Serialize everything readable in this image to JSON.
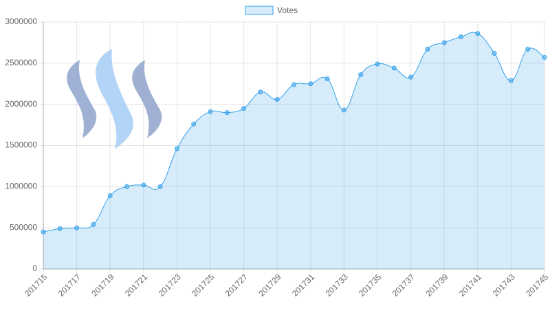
{
  "chart_data": {
    "type": "line",
    "categories": [
      "201715",
      null,
      "201717",
      null,
      "201719",
      null,
      "201721",
      null,
      "201723",
      null,
      "201725",
      null,
      "201727",
      null,
      "201729",
      null,
      "201731",
      null,
      "201733",
      null,
      "201735",
      null,
      "201737",
      null,
      "201739",
      null,
      "201741",
      null,
      "201743",
      null,
      "201745"
    ],
    "series": [
      {
        "name": "Votes",
        "color": "#36a2eb",
        "values": [
          450000,
          490000,
          500000,
          540000,
          890000,
          1000000,
          1020000,
          1000000,
          1460000,
          1760000,
          1910000,
          1900000,
          1950000,
          2150000,
          2060000,
          2240000,
          2250000,
          2310000,
          1930000,
          2360000,
          2490000,
          2440000,
          2330000,
          2670000,
          2750000,
          2820000,
          2860000,
          2620000,
          2290000,
          2670000,
          2570000
        ]
      }
    ],
    "ylim": [
      0,
      3000000
    ],
    "yticks": [
      0,
      500000,
      1000000,
      1500000,
      2000000,
      2500000,
      3000000
    ],
    "grid": true,
    "legend": "top"
  }
}
